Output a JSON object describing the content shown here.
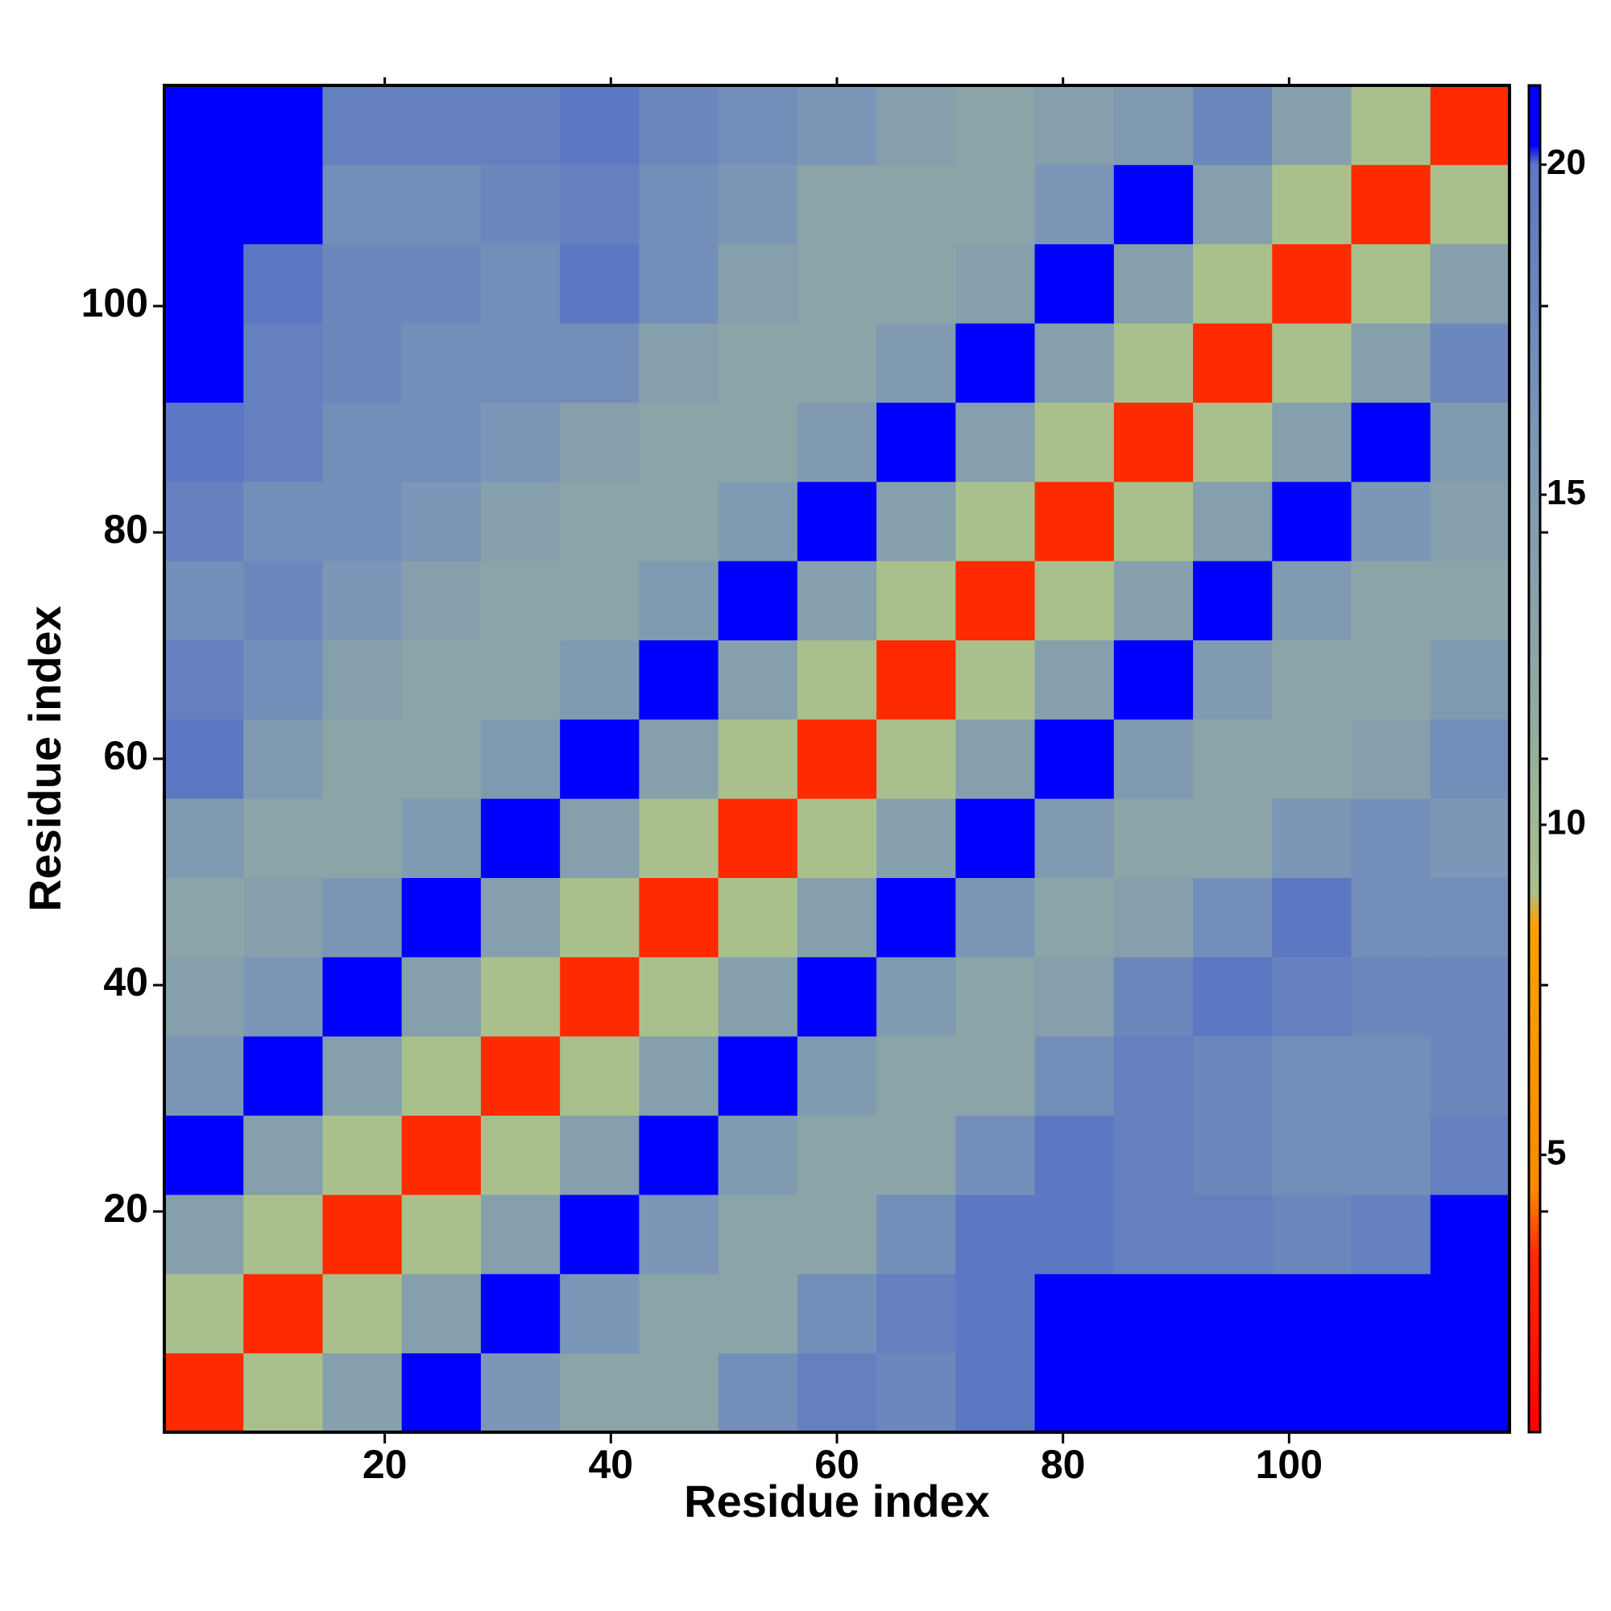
{
  "chart_data": {
    "type": "heatmap",
    "xlabel": "Residue index",
    "ylabel": "Residue index",
    "xlim": [
      0.5,
      119.5
    ],
    "ylim": [
      0.5,
      119.5
    ],
    "xticks": [
      20,
      40,
      60,
      80,
      100
    ],
    "yticks": [
      20,
      40,
      60,
      80,
      100
    ],
    "xbins": [
      0.5,
      7.5,
      14.5,
      21.5,
      28.5,
      35.5,
      42.5,
      49.5,
      56.5,
      63.5,
      70.5,
      77.5,
      84.5,
      91.5,
      98.5,
      105.5,
      112.5,
      119.5
    ],
    "ybins": [
      0.5,
      7.5,
      14.5,
      21.5,
      28.5,
      35.5,
      42.5,
      49.5,
      56.5,
      63.5,
      70.5,
      77.5,
      84.5,
      91.5,
      98.5,
      105.5,
      112.5,
      119.5
    ],
    "values": [
      [
        3.5,
        9,
        14,
        20.5,
        16,
        13,
        13,
        17,
        19,
        18,
        20,
        21,
        21,
        21,
        21,
        21,
        21
      ],
      [
        9,
        3.5,
        9,
        14,
        20.5,
        16,
        13,
        13,
        17,
        19,
        20,
        21,
        21,
        21,
        21,
        21,
        21
      ],
      [
        14,
        9,
        3.5,
        9,
        14,
        20.5,
        16,
        13,
        13,
        17,
        20,
        20,
        19,
        19,
        18,
        19,
        21
      ],
      [
        20.5,
        14,
        9,
        3.5,
        9,
        14,
        20.5,
        15,
        13,
        13,
        17,
        20,
        19,
        18,
        17,
        17,
        19
      ],
      [
        16,
        20.5,
        14,
        9,
        3.5,
        9,
        14,
        20.5,
        15,
        13,
        13,
        17,
        19,
        18,
        17,
        17,
        18
      ],
      [
        14,
        16,
        20.5,
        14,
        9,
        3.5,
        9,
        14,
        20.5,
        15,
        13,
        14,
        18,
        20,
        19,
        18,
        18
      ],
      [
        13,
        14,
        16,
        20.5,
        14,
        9,
        3.5,
        9,
        14,
        20.5,
        16,
        13,
        14,
        17,
        20,
        17,
        17
      ],
      [
        15,
        13,
        13,
        15,
        20.5,
        14,
        9,
        3.5,
        9,
        14,
        20.5,
        15,
        13,
        13,
        16,
        17,
        16
      ],
      [
        20,
        15,
        13,
        13,
        15,
        20.5,
        14,
        9,
        3.5,
        9,
        14,
        20.5,
        15,
        13,
        13,
        14,
        17
      ],
      [
        19,
        17,
        14,
        13,
        13,
        15,
        20.5,
        14,
        9,
        3.5,
        9,
        14,
        20.5,
        15,
        13,
        13,
        15
      ],
      [
        17,
        18,
        16,
        14,
        13,
        13,
        15,
        20.5,
        14,
        9,
        3.5,
        9,
        14,
        20.5,
        15,
        13,
        13
      ],
      [
        19,
        17,
        17,
        16,
        14,
        13,
        13,
        15,
        20.5,
        14,
        9,
        3.5,
        9,
        14,
        20.5,
        16,
        14
      ],
      [
        20,
        19,
        17,
        17,
        16,
        14,
        13,
        13,
        15,
        20.5,
        14,
        9,
        3.5,
        9,
        14,
        20.5,
        15
      ],
      [
        21,
        19,
        18,
        17,
        17,
        17,
        14,
        13,
        13,
        15,
        20.5,
        14,
        9,
        3.5,
        9,
        14,
        18
      ],
      [
        21,
        20,
        18,
        18,
        17,
        20,
        17,
        14,
        13,
        13,
        14,
        20.5,
        14,
        9,
        3.5,
        9,
        14
      ],
      [
        21,
        21,
        17,
        17,
        18,
        19,
        17,
        16,
        13,
        13,
        13,
        16,
        20.5,
        14,
        9,
        3.5,
        9
      ],
      [
        21,
        21,
        19,
        19,
        19,
        20,
        18,
        17,
        16,
        14,
        13,
        14,
        15,
        18,
        14,
        9,
        3.5
      ]
    ],
    "zlim": [
      0.8,
      21.2
    ],
    "zticks": [
      5,
      10,
      15,
      20
    ],
    "colorscale": [
      {
        "value": 0.8,
        "color": "#ff0000"
      },
      {
        "value": 3.5,
        "color": "#ff2a00"
      },
      {
        "value": 4.5,
        "color": "#ff8a00"
      },
      {
        "value": 8.5,
        "color": "#ffa000"
      },
      {
        "value": 9,
        "color": "#a9c08c"
      },
      {
        "value": 12,
        "color": "#90a8a2"
      },
      {
        "value": 16,
        "color": "#7b96b6"
      },
      {
        "value": 20,
        "color": "#5c78c2"
      },
      {
        "value": 20.3,
        "color": "#0000ff"
      },
      {
        "value": 21.2,
        "color": "#0000ff"
      }
    ]
  }
}
